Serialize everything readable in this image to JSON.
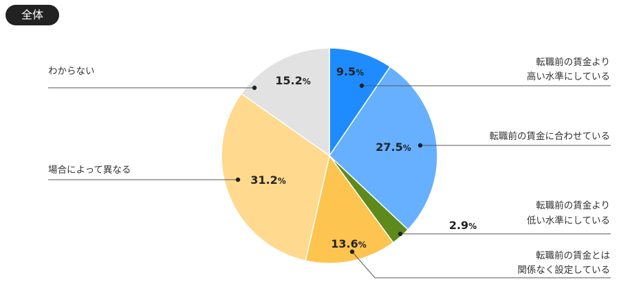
{
  "badge": "全体",
  "chart_data": {
    "type": "pie",
    "start_angle_deg": 0,
    "direction": "clockwise",
    "slices": [
      {
        "label_lines": [
          "転職前の賃金より",
          "高い水準にしている"
        ],
        "value": 9.5,
        "display": "9.5",
        "color": "#1e8cff"
      },
      {
        "label_lines": [
          "転職前の賃金に合わせている"
        ],
        "value": 27.5,
        "display": "27.5",
        "color": "#66b0ff"
      },
      {
        "label_lines": [
          "転職前の賃金より",
          "低い水準にしている"
        ],
        "value": 2.9,
        "display": "2.9",
        "color": "#5d8a1b"
      },
      {
        "label_lines": [
          "転職前の賃金とは",
          "関係なく設定している"
        ],
        "value": 13.6,
        "display": "13.6",
        "color": "#fdc44f"
      },
      {
        "label_lines": [
          "場合によって異なる"
        ],
        "value": 31.2,
        "display": "31.2",
        "color": "#fed98e"
      },
      {
        "label_lines": [
          "わからない"
        ],
        "value": 15.2,
        "display": "15.2",
        "color": "#e2e2e2"
      }
    ],
    "unit": "%"
  }
}
